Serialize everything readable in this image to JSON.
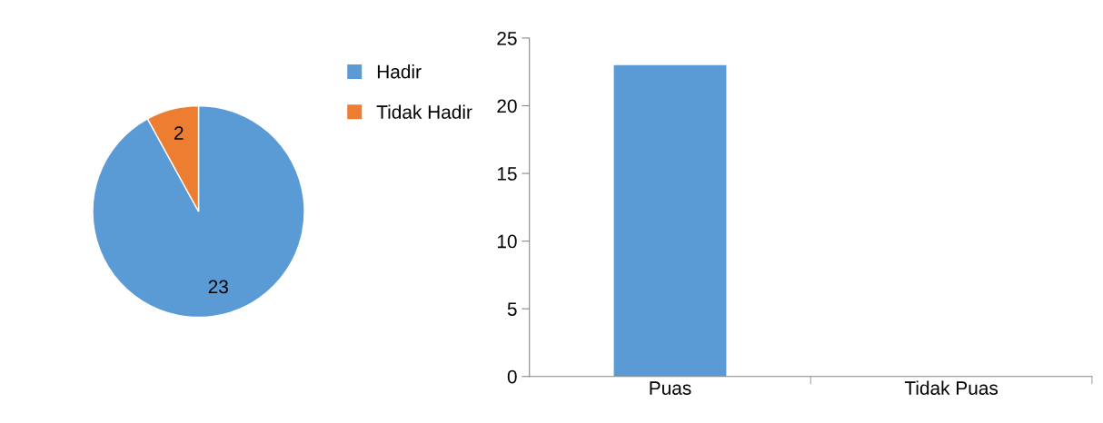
{
  "chart_data": [
    {
      "type": "pie",
      "categories": [
        "Hadir",
        "Tidak Hadir"
      ],
      "values": [
        23,
        2
      ],
      "colors": [
        "#5b9bd5",
        "#ed7d31"
      ],
      "data_labels": true,
      "legend": "top right"
    },
    {
      "type": "bar",
      "categories": [
        "Puas",
        "Tidak Puas"
      ],
      "values": [
        23,
        0
      ],
      "color": "#5b9bd5",
      "ylim": [
        0,
        25
      ],
      "yticks": [
        0,
        5,
        10,
        15,
        20,
        25
      ],
      "grid": false
    }
  ]
}
